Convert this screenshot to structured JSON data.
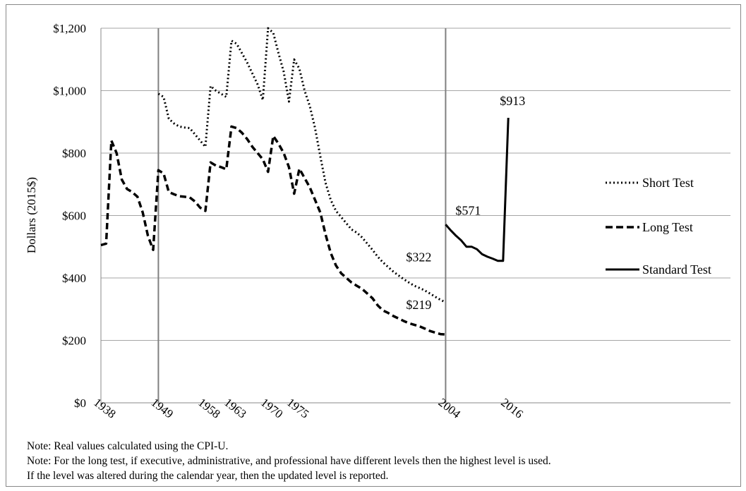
{
  "chart_data": {
    "type": "line",
    "title": "",
    "xlabel": "",
    "ylabel": "Dollars  (2015$)",
    "ylim": [
      0,
      1200
    ],
    "yticks": [
      "$0",
      "$200",
      "$400",
      "$600",
      "$800",
      "$1,000",
      "$1,200"
    ],
    "ytick_values": [
      0,
      200,
      400,
      600,
      800,
      1000,
      1200
    ],
    "xticks": [
      {
        "label": "1938",
        "idx": 0
      },
      {
        "label": "1949",
        "idx": 11
      },
      {
        "label": "1958",
        "idx": 20
      },
      {
        "label": "1963",
        "idx": 25
      },
      {
        "label": "1970",
        "idx": 32
      },
      {
        "label": "1975",
        "idx": 37
      },
      {
        "label": "2004",
        "idx": 66
      },
      {
        "label": "2016",
        "idx": 78
      }
    ],
    "grid": "horizontal",
    "legend_position": "right",
    "vertical_lines_at_idx": [
      11,
      66
    ],
    "series": [
      {
        "name": "Short Test",
        "style": "dotted",
        "points": [
          [
            11,
            990
          ],
          [
            12,
            980
          ],
          [
            13,
            910
          ],
          [
            14,
            895
          ],
          [
            15,
            885
          ],
          [
            16,
            882
          ],
          [
            17,
            880
          ],
          [
            18,
            860
          ],
          [
            19,
            840
          ],
          [
            20,
            820
          ],
          [
            21,
            1015
          ],
          [
            22,
            1000
          ],
          [
            23,
            990
          ],
          [
            24,
            980
          ],
          [
            25,
            1160
          ],
          [
            26,
            1150
          ],
          [
            27,
            1120
          ],
          [
            28,
            1090
          ],
          [
            29,
            1055
          ],
          [
            30,
            1020
          ],
          [
            31,
            970
          ],
          [
            32,
            1200
          ],
          [
            33,
            1185
          ],
          [
            34,
            1120
          ],
          [
            35,
            1060
          ],
          [
            36,
            965
          ],
          [
            37,
            1100
          ],
          [
            38,
            1070
          ],
          [
            39,
            1000
          ],
          [
            40,
            950
          ],
          [
            41,
            880
          ],
          [
            42,
            790
          ],
          [
            43,
            705
          ],
          [
            44,
            650
          ],
          [
            45,
            615
          ],
          [
            46,
            595
          ],
          [
            47,
            575
          ],
          [
            48,
            555
          ],
          [
            49,
            545
          ],
          [
            50,
            530
          ],
          [
            51,
            510
          ],
          [
            52,
            490
          ],
          [
            53,
            468
          ],
          [
            54,
            450
          ],
          [
            55,
            435
          ],
          [
            56,
            420
          ],
          [
            57,
            408
          ],
          [
            58,
            396
          ],
          [
            59,
            385
          ],
          [
            60,
            375
          ],
          [
            61,
            368
          ],
          [
            62,
            360
          ],
          [
            63,
            350
          ],
          [
            64,
            340
          ],
          [
            65,
            330
          ],
          [
            66,
            322
          ]
        ]
      },
      {
        "name": "Long Test",
        "style": "dashed",
        "points": [
          [
            0,
            505
          ],
          [
            1,
            510
          ],
          [
            2,
            840
          ],
          [
            3,
            800
          ],
          [
            4,
            715
          ],
          [
            5,
            685
          ],
          [
            6,
            675
          ],
          [
            7,
            660
          ],
          [
            8,
            610
          ],
          [
            9,
            535
          ],
          [
            10,
            490
          ],
          [
            11,
            745
          ],
          [
            12,
            735
          ],
          [
            13,
            675
          ],
          [
            14,
            668
          ],
          [
            15,
            662
          ],
          [
            16,
            660
          ],
          [
            17,
            658
          ],
          [
            18,
            645
          ],
          [
            19,
            625
          ],
          [
            20,
            615
          ],
          [
            21,
            770
          ],
          [
            22,
            760
          ],
          [
            23,
            755
          ],
          [
            24,
            748
          ],
          [
            25,
            885
          ],
          [
            26,
            880
          ],
          [
            27,
            865
          ],
          [
            28,
            845
          ],
          [
            29,
            820
          ],
          [
            30,
            800
          ],
          [
            31,
            780
          ],
          [
            32,
            740
          ],
          [
            33,
            855
          ],
          [
            34,
            830
          ],
          [
            35,
            800
          ],
          [
            36,
            755
          ],
          [
            37,
            670
          ],
          [
            38,
            750
          ],
          [
            39,
            720
          ],
          [
            40,
            690
          ],
          [
            41,
            650
          ],
          [
            42,
            610
          ],
          [
            43,
            540
          ],
          [
            44,
            480
          ],
          [
            45,
            440
          ],
          [
            46,
            415
          ],
          [
            47,
            400
          ],
          [
            48,
            385
          ],
          [
            49,
            375
          ],
          [
            50,
            365
          ],
          [
            51,
            350
          ],
          [
            52,
            335
          ],
          [
            53,
            312
          ],
          [
            54,
            296
          ],
          [
            55,
            288
          ],
          [
            56,
            278
          ],
          [
            57,
            270
          ],
          [
            58,
            262
          ],
          [
            59,
            255
          ],
          [
            60,
            250
          ],
          [
            61,
            245
          ],
          [
            62,
            238
          ],
          [
            63,
            230
          ],
          [
            64,
            225
          ],
          [
            65,
            220
          ],
          [
            66,
            219
          ]
        ]
      },
      {
        "name": "Standard Test",
        "style": "solid",
        "points": [
          [
            66,
            571
          ],
          [
            67,
            552
          ],
          [
            68,
            535
          ],
          [
            69,
            520
          ],
          [
            70,
            500
          ],
          [
            71,
            500
          ],
          [
            72,
            492
          ],
          [
            73,
            476
          ],
          [
            74,
            468
          ],
          [
            75,
            462
          ],
          [
            76,
            455
          ],
          [
            77,
            455
          ],
          [
            78,
            913
          ]
        ]
      }
    ],
    "annotations": [
      {
        "text": "$913",
        "idx": 78,
        "value": 913
      },
      {
        "text": "$571",
        "idx": 66,
        "value": 571
      },
      {
        "text": "$322",
        "idx": 66,
        "value": 322
      },
      {
        "text": "$219",
        "idx": 66,
        "value": 219
      }
    ]
  },
  "notes": [
    "Note: Real values calculated using the CPI-U.",
    "Note: For the long test, if executive, administrative, and professional have different levels then the highest level is used.",
    "If the level was altered during the calendar year, then the updated level is reported."
  ]
}
